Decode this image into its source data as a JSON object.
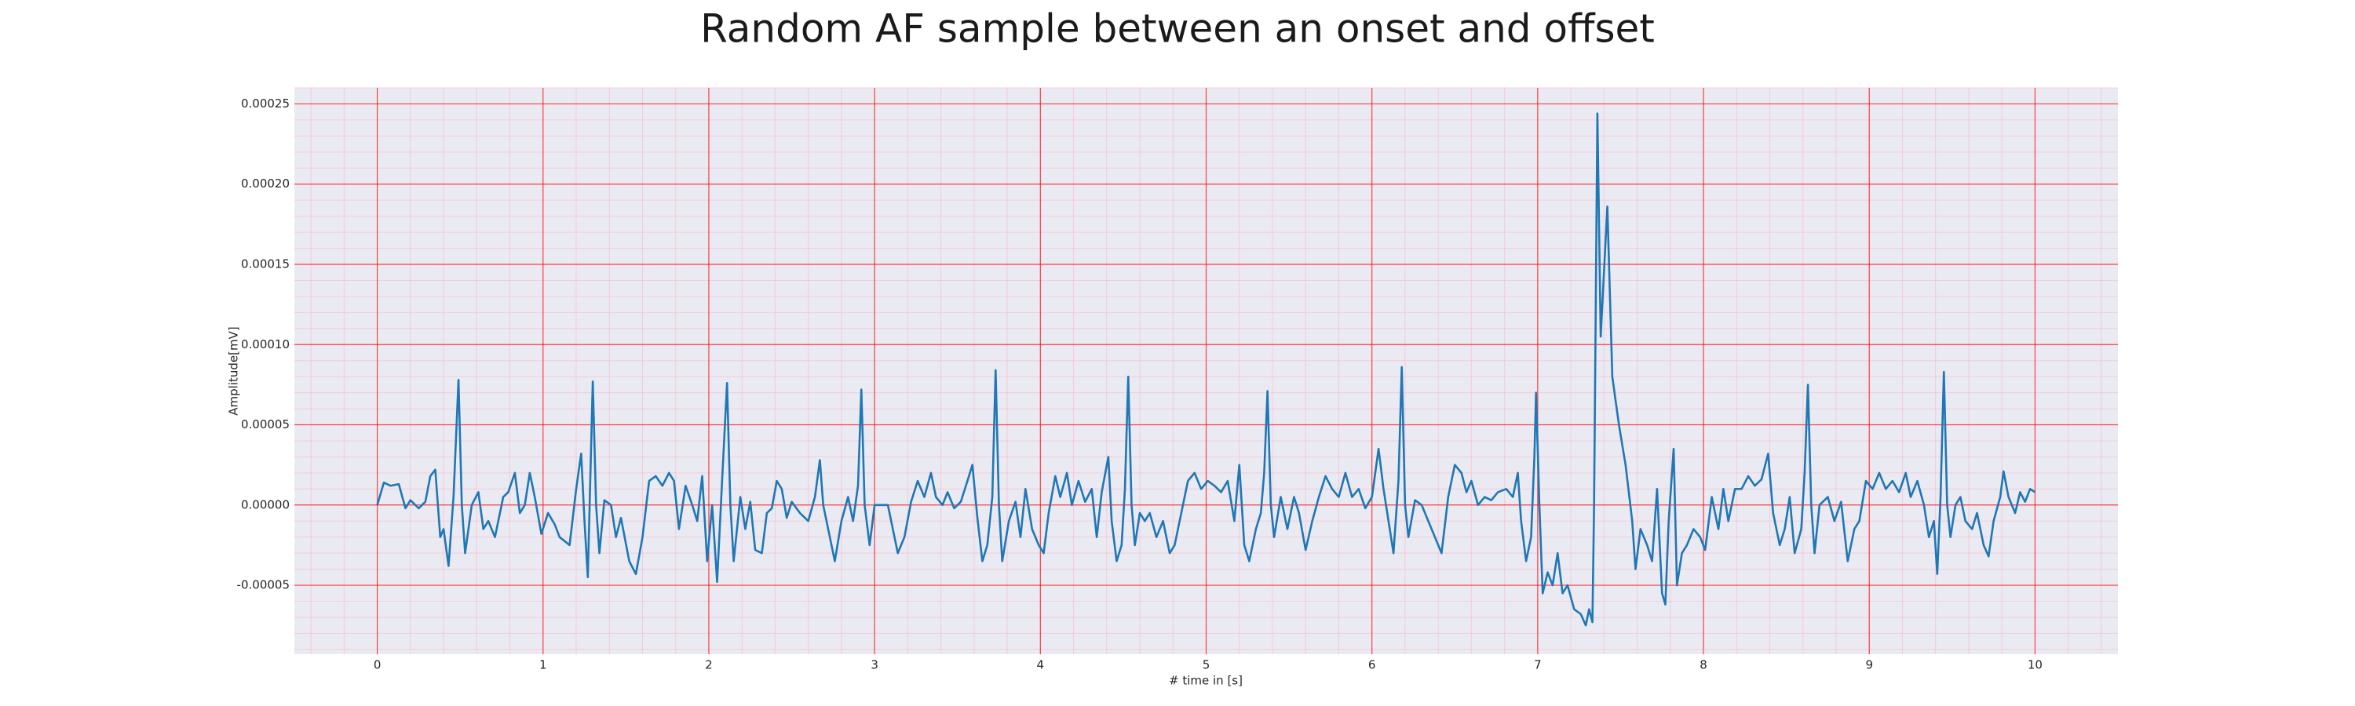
{
  "chart_data": {
    "type": "line",
    "title": "Random AF sample between an onset and offset",
    "xlabel": "# time in [s]",
    "ylabel": "Amplitude[mV]",
    "color": "#1f77b4",
    "grid": true,
    "minor_grid": true,
    "xlim": [
      -0.5,
      10.5
    ],
    "xticks": [
      0,
      1,
      2,
      3,
      4,
      5,
      6,
      7,
      8,
      9,
      10
    ],
    "ylim": [
      -9.3e-05,
      0.00026
    ],
    "yticks": [
      {
        "value": -5e-05,
        "label": "-0.00005"
      },
      {
        "value": 0,
        "label": "0.00000"
      },
      {
        "value": 5e-05,
        "label": "0.00005"
      },
      {
        "value": 0.0001,
        "label": "0.00010"
      },
      {
        "value": 0.00015,
        "label": "0.00015"
      },
      {
        "value": 0.0002,
        "label": "0.00020"
      },
      {
        "value": 0.00025,
        "label": "0.00025"
      }
    ],
    "x": [
      0.0,
      0.04,
      0.08,
      0.13,
      0.17,
      0.2,
      0.25,
      0.29,
      0.32,
      0.35,
      0.38,
      0.4,
      0.43,
      0.46,
      0.49,
      0.51,
      0.53,
      0.57,
      0.61,
      0.64,
      0.67,
      0.71,
      0.76,
      0.79,
      0.83,
      0.86,
      0.89,
      0.92,
      0.95,
      0.99,
      1.03,
      1.07,
      1.1,
      1.16,
      1.2,
      1.23,
      1.25,
      1.27,
      1.3,
      1.32,
      1.34,
      1.37,
      1.41,
      1.44,
      1.47,
      1.52,
      1.56,
      1.6,
      1.64,
      1.68,
      1.72,
      1.76,
      1.79,
      1.82,
      1.86,
      1.9,
      1.93,
      1.96,
      1.99,
      2.02,
      2.05,
      2.08,
      2.11,
      2.13,
      2.15,
      2.19,
      2.22,
      2.25,
      2.28,
      2.32,
      2.35,
      2.38,
      2.41,
      2.44,
      2.47,
      2.5,
      2.55,
      2.6,
      2.64,
      2.67,
      2.69,
      2.72,
      2.76,
      2.8,
      2.84,
      2.87,
      2.9,
      2.92,
      2.94,
      2.97,
      3.0,
      3.04,
      3.08,
      3.11,
      3.14,
      3.18,
      3.22,
      3.26,
      3.3,
      3.34,
      3.37,
      3.41,
      3.44,
      3.48,
      3.52,
      3.56,
      3.59,
      3.62,
      3.65,
      3.68,
      3.71,
      3.73,
      3.75,
      3.77,
      3.81,
      3.85,
      3.88,
      3.91,
      3.95,
      3.99,
      4.02,
      4.05,
      4.09,
      4.12,
      4.16,
      4.19,
      4.23,
      4.27,
      4.31,
      4.34,
      4.37,
      4.41,
      4.43,
      4.46,
      4.49,
      4.51,
      4.53,
      4.55,
      4.57,
      4.6,
      4.63,
      4.66,
      4.7,
      4.74,
      4.78,
      4.81,
      4.85,
      4.89,
      4.93,
      4.97,
      5.01,
      5.05,
      5.09,
      5.13,
      5.17,
      5.2,
      5.23,
      5.26,
      5.3,
      5.33,
      5.35,
      5.37,
      5.39,
      5.41,
      5.45,
      5.49,
      5.53,
      5.56,
      5.6,
      5.64,
      5.68,
      5.72,
      5.76,
      5.8,
      5.84,
      5.88,
      5.92,
      5.96,
      6.0,
      6.04,
      6.07,
      6.1,
      6.13,
      6.16,
      6.18,
      6.2,
      6.22,
      6.26,
      6.3,
      6.34,
      6.38,
      6.42,
      6.46,
      6.5,
      6.54,
      6.57,
      6.6,
      6.64,
      6.68,
      6.72,
      6.76,
      6.81,
      6.85,
      6.88,
      6.9,
      6.93,
      6.96,
      6.98,
      6.99,
      7.01,
      7.03,
      7.06,
      7.09,
      7.12,
      7.15,
      7.18,
      7.22,
      7.26,
      7.29,
      7.31,
      7.33,
      7.34,
      7.36,
      7.38,
      7.42,
      7.45,
      7.49,
      7.53,
      7.57,
      7.59,
      7.62,
      7.66,
      7.69,
      7.72,
      7.75,
      7.77,
      7.79,
      7.82,
      7.84,
      7.87,
      7.9,
      7.94,
      7.98,
      8.01,
      8.05,
      8.09,
      8.12,
      8.15,
      8.19,
      8.23,
      8.27,
      8.31,
      8.35,
      8.39,
      8.42,
      8.46,
      8.49,
      8.52,
      8.55,
      8.59,
      8.61,
      8.63,
      8.65,
      8.67,
      8.7,
      8.75,
      8.79,
      8.83,
      8.87,
      8.91,
      8.94,
      8.98,
      9.02,
      9.06,
      9.1,
      9.14,
      9.18,
      9.22,
      9.25,
      9.29,
      9.33,
      9.36,
      9.39,
      9.41,
      9.43,
      9.45,
      9.47,
      9.49,
      9.52,
      9.55,
      9.58,
      9.62,
      9.65,
      9.69,
      9.72,
      9.75,
      9.79,
      9.81,
      9.84,
      9.88,
      9.91,
      9.94,
      9.97,
      10.0
    ],
    "values": [
      0,
      1.4e-05,
      1.2e-05,
      1.3e-05,
      -2e-06,
      3e-06,
      -2e-06,
      2e-06,
      1.8e-05,
      2.2e-05,
      -2e-05,
      -1.5e-05,
      -3.8e-05,
      5e-06,
      7.8e-05,
      0,
      -3e-05,
      0,
      8e-06,
      -1.5e-05,
      -1e-05,
      -2e-05,
      5e-06,
      8e-06,
      2e-05,
      -5e-06,
      0,
      2e-05,
      5e-06,
      -1.8e-05,
      -5e-06,
      -1.2e-05,
      -2e-05,
      -2.5e-05,
      1e-05,
      3.2e-05,
      -1e-05,
      -4.5e-05,
      7.7e-05,
      0,
      -3e-05,
      3e-06,
      0,
      -2e-05,
      -8e-06,
      -3.5e-05,
      -4.3e-05,
      -2e-05,
      1.5e-05,
      1.8e-05,
      1.2e-05,
      2e-05,
      1.5e-05,
      -1.5e-05,
      1.2e-05,
      0,
      -1e-05,
      1.8e-05,
      -3.5e-05,
      0,
      -4.8e-05,
      1.5e-05,
      7.6e-05,
      0,
      -3.5e-05,
      5e-06,
      -1.5e-05,
      2e-06,
      -2.8e-05,
      -3e-05,
      -5e-06,
      -2e-06,
      1.5e-05,
      1e-05,
      -8e-06,
      2e-06,
      -5e-06,
      -1e-05,
      5e-06,
      2.8e-05,
      0,
      -1.5e-05,
      -3.5e-05,
      -1e-05,
      5e-06,
      -1e-05,
      1.2e-05,
      7.2e-05,
      0,
      -2.5e-05,
      0,
      0,
      0,
      -1.5e-05,
      -3e-05,
      -2e-05,
      2e-06,
      1.5e-05,
      5e-06,
      2e-05,
      5e-06,
      0,
      8e-06,
      -2e-06,
      2e-06,
      1.5e-05,
      2.5e-05,
      -8e-06,
      -3.5e-05,
      -2.5e-05,
      5e-06,
      8.4e-05,
      0,
      -3.5e-05,
      -1e-05,
      2e-06,
      -2e-05,
      1e-05,
      -1.5e-05,
      -2.5e-05,
      -3e-05,
      -5e-06,
      1.8e-05,
      5e-06,
      2e-05,
      0,
      1.5e-05,
      2e-06,
      1e-05,
      -2e-05,
      8e-06,
      3e-05,
      -1e-05,
      -3.5e-05,
      -2.5e-05,
      1e-05,
      8e-05,
      0,
      -2.5e-05,
      -5e-06,
      -1e-05,
      -5e-06,
      -2e-05,
      -1e-05,
      -3e-05,
      -2.5e-05,
      -5e-06,
      1.5e-05,
      2e-05,
      1e-05,
      1.5e-05,
      1.2e-05,
      8e-06,
      1.5e-05,
      -1e-05,
      2.5e-05,
      -2.5e-05,
      -3.5e-05,
      -1.5e-05,
      -5e-06,
      2e-05,
      7.1e-05,
      0,
      -2e-05,
      5e-06,
      -1.5e-05,
      5e-06,
      -5e-06,
      -2.8e-05,
      -1e-05,
      5e-06,
      1.8e-05,
      1e-05,
      5e-06,
      2e-05,
      5e-06,
      1e-05,
      -2e-06,
      5e-06,
      3.5e-05,
      1e-05,
      -1e-05,
      -3e-05,
      1.5e-05,
      8.6e-05,
      0,
      -2e-05,
      3e-06,
      0,
      -1e-05,
      -2e-05,
      -3e-05,
      5e-06,
      2.5e-05,
      2e-05,
      8e-06,
      1.5e-05,
      0,
      5e-06,
      3e-06,
      8e-06,
      1e-05,
      5e-06,
      2e-05,
      -1e-05,
      -3.5e-05,
      -2e-05,
      3e-05,
      7e-05,
      0,
      -5.5e-05,
      -4.2e-05,
      -5e-05,
      -3e-05,
      -5.5e-05,
      -5e-05,
      -6.5e-05,
      -6.8e-05,
      -7.5e-05,
      -6.5e-05,
      -7.3e-05,
      0,
      0.000244,
      0.000105,
      0.000186,
      8e-05,
      5e-05,
      2.5e-05,
      -1e-05,
      -4e-05,
      -1.5e-05,
      -2.5e-05,
      -3.5e-05,
      1e-05,
      -5.5e-05,
      -6.2e-05,
      -1e-05,
      3.5e-05,
      -5e-05,
      -3e-05,
      -2.5e-05,
      -1.5e-05,
      -2e-05,
      -2.8e-05,
      5e-06,
      -1.5e-05,
      1e-05,
      -1e-05,
      1e-05,
      1e-05,
      1.8e-05,
      1.2e-05,
      1.6e-05,
      3.2e-05,
      -5e-06,
      -2.5e-05,
      -1.5e-05,
      5e-06,
      -3e-05,
      -1.5e-05,
      2e-05,
      7.5e-05,
      0,
      -3e-05,
      0,
      5e-06,
      -1e-05,
      2e-06,
      -3.5e-05,
      -1.5e-05,
      -1e-05,
      1.5e-05,
      1e-05,
      2e-05,
      1e-05,
      1.5e-05,
      8e-06,
      2e-05,
      5e-06,
      1.5e-05,
      0,
      -2e-05,
      -1e-05,
      -4.3e-05,
      5e-06,
      8.3e-05,
      0,
      -2e-05,
      0,
      5e-06,
      -1e-05,
      -1.5e-05,
      -5e-06,
      -2.5e-05,
      -3.2e-05,
      -1e-05,
      5e-06,
      2.1e-05,
      5e-06,
      -5e-06,
      8e-06,
      2e-06,
      1e-05,
      8e-06
    ]
  }
}
